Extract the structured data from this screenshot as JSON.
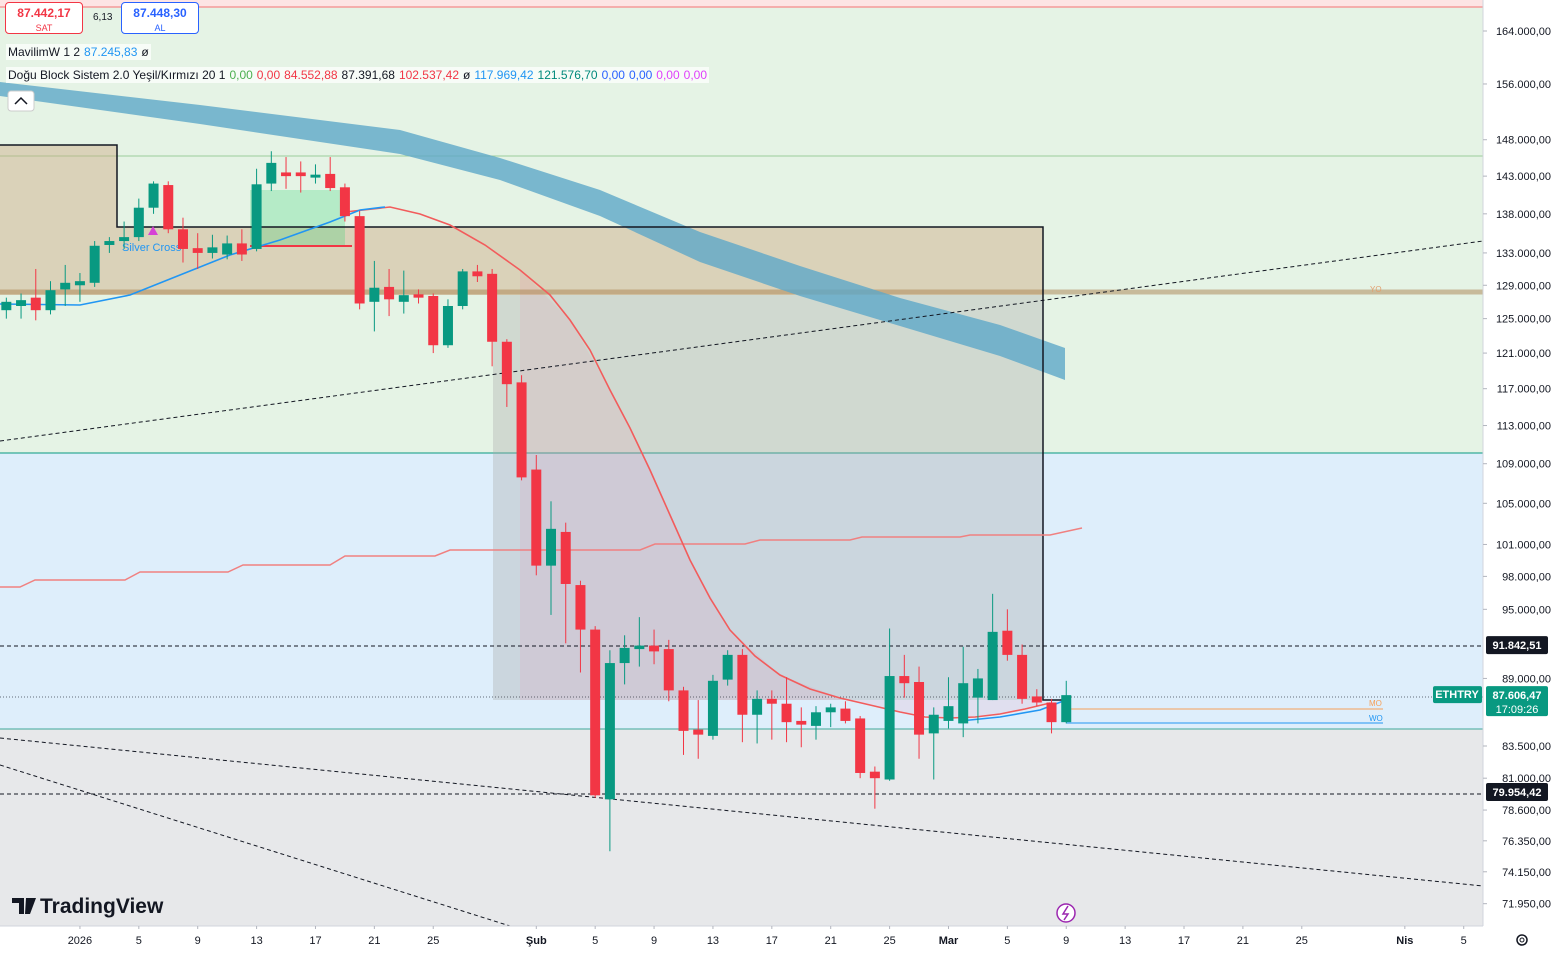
{
  "header": {
    "sell": {
      "price": "87.442,17",
      "label": "SAT"
    },
    "spread": "6,13",
    "buy": {
      "price": "87.448,30",
      "label": "AL"
    },
    "indicators": [
      {
        "name": "MavilimW 1 2",
        "values": [
          "87.245,83",
          "ø"
        ]
      },
      {
        "name": "Doğu Block Sistem 2.0 Yeşil/Kırmızı 20 1",
        "values": [
          "0,00",
          "0,00",
          "84.552,88",
          "87.391,68",
          "102.537,42",
          "ø",
          "117.969,42",
          "121.576,70",
          "0,00",
          "0,00",
          "0,00",
          "0,00"
        ]
      }
    ]
  },
  "chart_data": {
    "type": "candlestick",
    "symbol": "ETHTRY",
    "countdown": "17:09:26",
    "watermark": "TradingView",
    "annotations": [
      "Silver Cross",
      "YO",
      "MO",
      "WO"
    ],
    "log_scale": true,
    "up_color": "#089981",
    "down_color": "#f23645",
    "x": [
      -5,
      -4,
      -3,
      -2,
      -1,
      0,
      1,
      2,
      3,
      4,
      5,
      6,
      7,
      8,
      9,
      10,
      11,
      12,
      13,
      14,
      15,
      16,
      17,
      18,
      19,
      20,
      21,
      22,
      23,
      24,
      25,
      26,
      27,
      28,
      29,
      30,
      31,
      32,
      33,
      34,
      35,
      36,
      37,
      38,
      39,
      40,
      41,
      42,
      43,
      44,
      45,
      46,
      47,
      48,
      49,
      50,
      51,
      52,
      53,
      54,
      55,
      56,
      57,
      58,
      59,
      60,
      61,
      62,
      63,
      64,
      65,
      66,
      67
    ],
    "open": [
      126000,
      126500,
      127500,
      126000,
      128500,
      129000,
      129300,
      134000,
      134500,
      135000,
      138800,
      141800,
      136000,
      133600,
      133000,
      132800,
      134200,
      133500,
      142000,
      143500,
      143500,
      142800,
      143300,
      141500,
      137700,
      127000,
      128800,
      127000,
      127900,
      127700,
      121900,
      126500,
      130700,
      130400,
      122300,
      117700,
      108400,
      99000,
      102200,
      97200,
      93200,
      79400,
      90300,
      91500,
      91800,
      91500,
      88000,
      84800,
      84300,
      88900,
      91000,
      86000,
      87300,
      86900,
      85500,
      85100,
      86200,
      86500,
      85700,
      81500,
      80900,
      89200,
      88700,
      84500,
      85500,
      85300,
      87400,
      87200,
      93100,
      91000,
      87500,
      87000,
      85400
    ],
    "high": [
      127500,
      128000,
      131000,
      129500,
      131500,
      130500,
      134500,
      135000,
      137000,
      140000,
      142300,
      142300,
      137500,
      135500,
      135300,
      135200,
      136000,
      144000,
      146400,
      145600,
      145000,
      144600,
      145600,
      142000,
      138400,
      132000,
      131000,
      130800,
      128500,
      128000,
      127300,
      131000,
      131500,
      131000,
      122600,
      118500,
      109900,
      105200,
      103100,
      97600,
      93500,
      91400,
      92700,
      94300,
      93200,
      92300,
      88300,
      87200,
      89300,
      91400,
      91500,
      88000,
      88000,
      89100,
      86600,
      86700,
      86900,
      87100,
      85900,
      81900,
      93300,
      91000,
      90000,
      86600,
      89100,
      91700,
      89800,
      96400,
      95000,
      91900,
      88100,
      87300,
      88800
    ],
    "low": [
      125000,
      125000,
      124800,
      125500,
      126500,
      127000,
      128800,
      133000,
      133500,
      134500,
      138000,
      135500,
      131800,
      131000,
      132300,
      132200,
      132000,
      133200,
      141000,
      141300,
      140800,
      142000,
      141000,
      137000,
      126100,
      123500,
      125300,
      125600,
      126800,
      121000,
      121600,
      126100,
      129400,
      119500,
      115000,
      107300,
      98100,
      94500,
      92000,
      89500,
      79500,
      75600,
      88500,
      90000,
      90200,
      87100,
      82800,
      82500,
      84000,
      88400,
      83800,
      83700,
      84000,
      83800,
      83400,
      84000,
      85000,
      85300,
      81000,
      78700,
      80800,
      87400,
      82500,
      80900,
      84900,
      84200,
      85300,
      87200,
      90500,
      86900,
      86700,
      84500,
      85300
    ],
    "close": [
      127000,
      127200,
      126000,
      128400,
      129300,
      129500,
      133900,
      134500,
      135000,
      138800,
      142000,
      136000,
      133500,
      133000,
      133700,
      134200,
      132800,
      141900,
      144800,
      143000,
      143000,
      143200,
      141400,
      137700,
      126800,
      128700,
      127300,
      127800,
      127500,
      121900,
      126500,
      130700,
      130100,
      122300,
      117500,
      107600,
      99000,
      102500,
      97300,
      93200,
      79700,
      90300,
      91600,
      91800,
      91300,
      88000,
      84700,
      84400,
      88800,
      91000,
      86000,
      87300,
      86900,
      85400,
      85200,
      86200,
      86600,
      85500,
      81400,
      81000,
      89200,
      88600,
      84400,
      86000,
      86700,
      88600,
      89000,
      93000,
      91000,
      87300,
      87000,
      85400,
      87606.47
    ],
    "xlim": [
      -5.43,
      95.31
    ],
    "xticks": [
      {
        "value": 0,
        "label": "2026"
      },
      {
        "value": 4,
        "label": "5"
      },
      {
        "value": 8,
        "label": "9"
      },
      {
        "value": 12,
        "label": "13"
      },
      {
        "value": 16,
        "label": "17"
      },
      {
        "value": 20,
        "label": "21"
      },
      {
        "value": 24,
        "label": "25"
      },
      {
        "value": 31,
        "label": "Şub"
      },
      {
        "value": 35,
        "label": "5"
      },
      {
        "value": 39,
        "label": "9"
      },
      {
        "value": 43,
        "label": "13"
      },
      {
        "value": 47,
        "label": "17"
      },
      {
        "value": 51,
        "label": "21"
      },
      {
        "value": 55,
        "label": "25"
      },
      {
        "value": 59,
        "label": "Mar"
      },
      {
        "value": 63,
        "label": "5"
      },
      {
        "value": 67,
        "label": "9"
      },
      {
        "value": 71,
        "label": "13"
      },
      {
        "value": 75,
        "label": "17"
      },
      {
        "value": 79,
        "label": "21"
      },
      {
        "value": 83,
        "label": "25"
      },
      {
        "value": 90,
        "label": "Nis"
      },
      {
        "value": 94,
        "label": "5"
      }
    ],
    "ylim": [
      70450,
      168870
    ],
    "yticks": [
      {
        "value": 164000,
        "label": "164.000,00"
      },
      {
        "value": 156000,
        "label": "156.000,00"
      },
      {
        "value": 148000,
        "label": "148.000,00"
      },
      {
        "value": 143000,
        "label": "143.000,00"
      },
      {
        "value": 138000,
        "label": "138.000,00"
      },
      {
        "value": 133000,
        "label": "133.000,00"
      },
      {
        "value": 129000,
        "label": "129.000,00"
      },
      {
        "value": 125000,
        "label": "125.000,00"
      },
      {
        "value": 121000,
        "label": "121.000,00"
      },
      {
        "value": 117000,
        "label": "117.000,00"
      },
      {
        "value": 113000,
        "label": "113.000,00"
      },
      {
        "value": 109000,
        "label": "109.000,00"
      },
      {
        "value": 105000,
        "label": "105.000,00"
      },
      {
        "value": 101000,
        "label": "101.000,00"
      },
      {
        "value": 98000,
        "label": "98.000,00"
      },
      {
        "value": 95000,
        "label": "95.000,00"
      },
      {
        "value": 89000,
        "label": "89.000,00"
      },
      {
        "value": 83500,
        "label": "83.500,00"
      },
      {
        "value": 81000,
        "label": "81.000,00"
      },
      {
        "value": 78600,
        "label": "78.600,00"
      },
      {
        "value": 76350,
        "label": "76.350,00"
      },
      {
        "value": 74150,
        "label": "74.150,00"
      },
      {
        "value": 71950,
        "label": "71.950,00"
      }
    ],
    "price_lines": [
      {
        "value": 91842.51,
        "label": "91.842,51"
      },
      {
        "value": 79954.42,
        "label": "79.954,42"
      }
    ],
    "last_price": {
      "value": 87606.47,
      "label": "87.606,47"
    }
  }
}
